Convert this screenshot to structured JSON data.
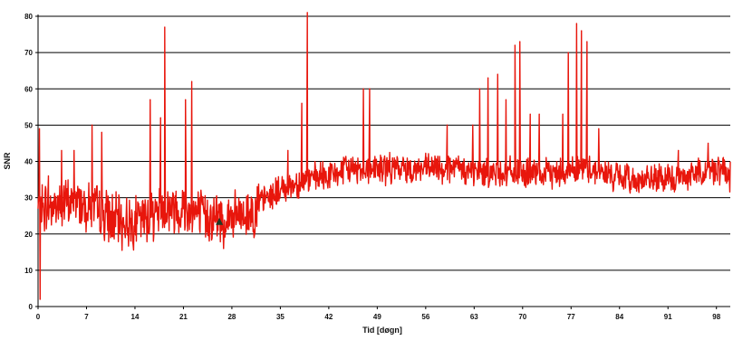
{
  "chart_data": {
    "type": "line",
    "title": "",
    "xlabel": "Tid [døgn]",
    "ylabel": "SNR",
    "xlim": [
      0,
      100
    ],
    "ylim": [
      0,
      80
    ],
    "xticks": [
      0,
      7,
      14,
      21,
      28,
      35,
      42,
      49,
      56,
      63,
      70,
      77,
      84,
      91,
      98
    ],
    "yticks": [
      0,
      10,
      20,
      30,
      40,
      50,
      60,
      70,
      80
    ],
    "x_tick_labels": [
      "0",
      "7",
      "14",
      "21",
      "28",
      "35",
      "42",
      "49",
      "56",
      "63",
      "70",
      "77",
      "84",
      "91",
      "98"
    ],
    "y_tick_labels": [
      "0",
      "10",
      "20",
      "30",
      "40",
      "50",
      "60",
      "70",
      "80"
    ],
    "grid": "horizontal",
    "legend": "none",
    "series": [
      {
        "color": "#e8160c",
        "baseline": [
          [
            0,
            27
          ],
          [
            3,
            28
          ],
          [
            6,
            29
          ],
          [
            9,
            26
          ],
          [
            12,
            23
          ],
          [
            15,
            24
          ],
          [
            18,
            27
          ],
          [
            21,
            27
          ],
          [
            24,
            25
          ],
          [
            27,
            24
          ],
          [
            30,
            25
          ],
          [
            33,
            30
          ],
          [
            36,
            33
          ],
          [
            39,
            35
          ],
          [
            42,
            36
          ],
          [
            45,
            38
          ],
          [
            48,
            38
          ],
          [
            52,
            38
          ],
          [
            56,
            38
          ],
          [
            60,
            38
          ],
          [
            63,
            37
          ],
          [
            66,
            37
          ],
          [
            69,
            37
          ],
          [
            72,
            36
          ],
          [
            75,
            37
          ],
          [
            78,
            38
          ],
          [
            80,
            38
          ],
          [
            83,
            36
          ],
          [
            86,
            35
          ],
          [
            89,
            35
          ],
          [
            92,
            35
          ],
          [
            95,
            37
          ],
          [
            98,
            38
          ],
          [
            100,
            36
          ]
        ],
        "spikes": [
          [
            0.2,
            49
          ],
          [
            0.3,
            2
          ],
          [
            1.5,
            36
          ],
          [
            3.4,
            43
          ],
          [
            5.2,
            43
          ],
          [
            7.8,
            50
          ],
          [
            9.2,
            48
          ],
          [
            10.5,
            19
          ],
          [
            16.2,
            57
          ],
          [
            17.7,
            52
          ],
          [
            18.3,
            77
          ],
          [
            21.3,
            57
          ],
          [
            22.2,
            62
          ],
          [
            26.8,
            16
          ],
          [
            31.2,
            19
          ],
          [
            36.1,
            43
          ],
          [
            38.1,
            56
          ],
          [
            38.9,
            81
          ],
          [
            47,
            60
          ],
          [
            47.9,
            60
          ],
          [
            59.1,
            50
          ],
          [
            62.8,
            50
          ],
          [
            63.8,
            60
          ],
          [
            65,
            63
          ],
          [
            66.4,
            64
          ],
          [
            67.6,
            57
          ],
          [
            68.9,
            72
          ],
          [
            69.6,
            73
          ],
          [
            71.1,
            53
          ],
          [
            72.4,
            53
          ],
          [
            75.8,
            53
          ],
          [
            76.6,
            70
          ],
          [
            77.8,
            78
          ],
          [
            78.5,
            76
          ],
          [
            79.3,
            73
          ],
          [
            81,
            49
          ],
          [
            92.5,
            43
          ],
          [
            96.8,
            45
          ]
        ]
      }
    ],
    "marker": {
      "x": 26.2,
      "y": 23.5,
      "shape": "triangle",
      "color": "#1f3a24"
    }
  }
}
